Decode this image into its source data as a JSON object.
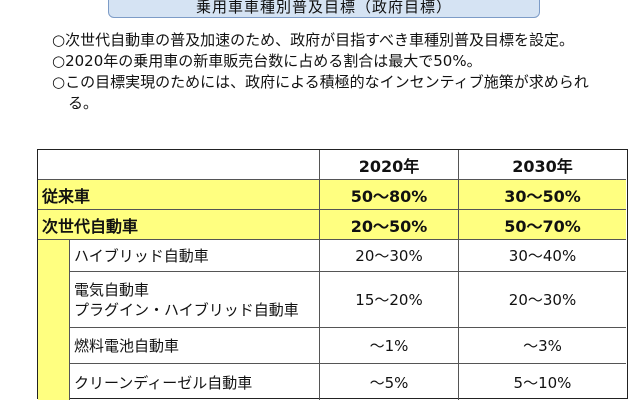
{
  "title": "乗用車車種別普及目標（政府目標）",
  "notes": [
    "○次世代自動車の普及加速のため、政府が目指すべき車種別普及目標を設定。",
    "○2020年の乗用車の新車販売台数に占める割合は最大で50%。",
    "○この目標実現のためには、政府による積極的なインセンティブ施策が求められる。"
  ],
  "table": {
    "headers": [
      "2020年",
      "2030年"
    ],
    "rows": [
      {
        "label": "従来車",
        "v2020": "50〜80%",
        "v2030": "30〜50%"
      },
      {
        "label": "次世代自動車",
        "v2020": "20〜50%",
        "v2030": "50〜70%"
      },
      {
        "label": "ハイブリッド自動車",
        "v2020": "20〜30%",
        "v2030": "30〜40%"
      },
      {
        "label_line1": "電気自動車",
        "label_line2": "プラグイン・ハイブリッド自動車",
        "v2020": "15〜20%",
        "v2030": "20〜30%"
      },
      {
        "label": "燃料電池自動車",
        "v2020": "〜1%",
        "v2030": "〜3%"
      },
      {
        "label": "クリーンディーゼル自動車",
        "v2020": "〜5%",
        "v2030": "5〜10%"
      }
    ]
  },
  "colors": {
    "highlight": "#ffff80",
    "title_bg": "#d5e3f3",
    "title_border": "#7d9cc7"
  }
}
